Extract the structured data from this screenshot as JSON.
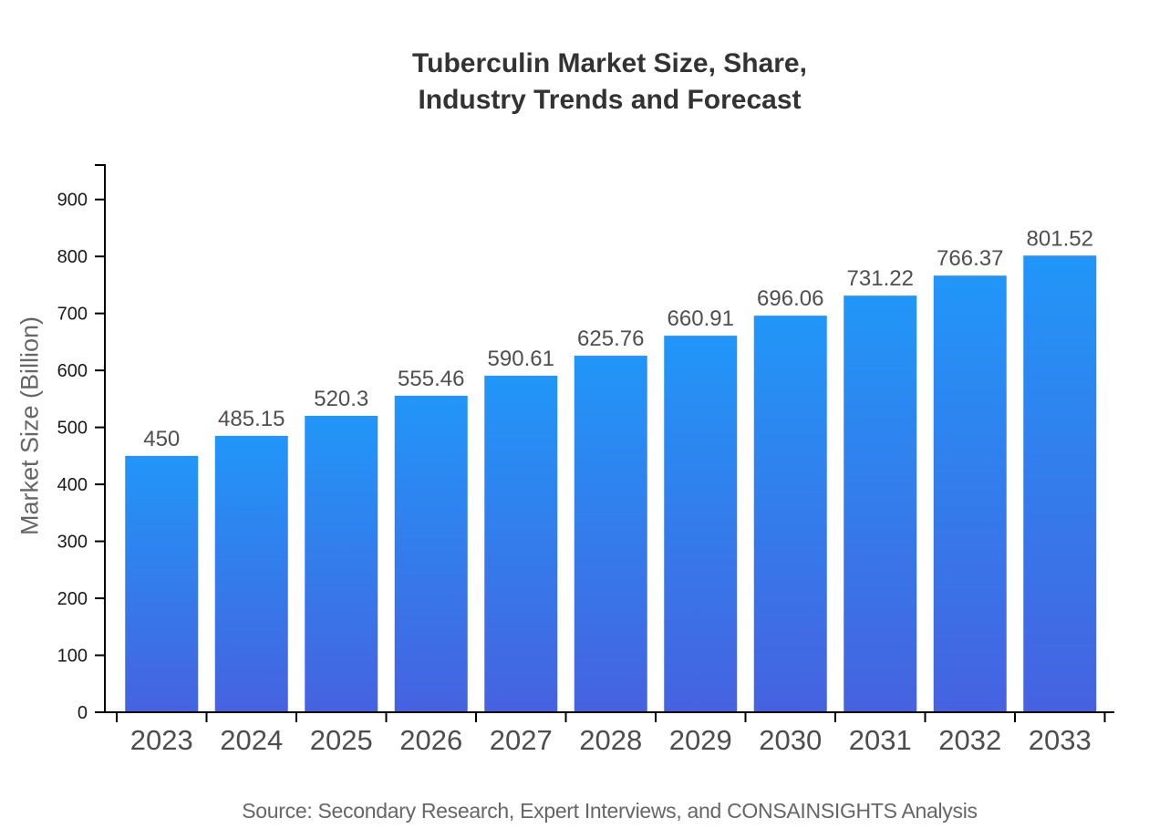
{
  "title": {
    "line1": "Tuberculin Market Size, Share,",
    "line2": "Industry Trends and Forecast"
  },
  "source": "Source: Secondary Research, Expert Interviews, and CONSAINSIGHTS Analysis",
  "colors": {
    "bar_gradient_top": "#2196f8",
    "bar_gradient_bottom": "#4662e0",
    "axis": "#000000",
    "y_tick_label": "#1a1a1a",
    "x_tick_label": "#4d4d4d",
    "value_label": "#4f4f4f",
    "title_text": "#333333",
    "muted_text": "#666666"
  },
  "chart_data": {
    "type": "bar",
    "title": "Tuberculin Market Size, Share, Industry Trends and Forecast",
    "categories": [
      "2023",
      "2024",
      "2025",
      "2026",
      "2027",
      "2028",
      "2029",
      "2030",
      "2031",
      "2032",
      "2033"
    ],
    "values": [
      450,
      485.15,
      520.3,
      555.46,
      590.61,
      625.76,
      660.91,
      696.06,
      731.22,
      766.37,
      801.52
    ],
    "value_labels": [
      "450",
      "485.15",
      "520.3",
      "555.46",
      "590.61",
      "625.76",
      "660.91",
      "696.06",
      "731.22",
      "766.37",
      "801.52"
    ],
    "xlabel": "",
    "ylabel": "Market Size (Billion)",
    "ylim": [
      0,
      962
    ],
    "yticks": [
      0,
      100,
      200,
      300,
      400,
      500,
      600,
      700,
      800,
      900
    ],
    "grid": false,
    "legend": "none",
    "bar_labels_position": "above"
  }
}
